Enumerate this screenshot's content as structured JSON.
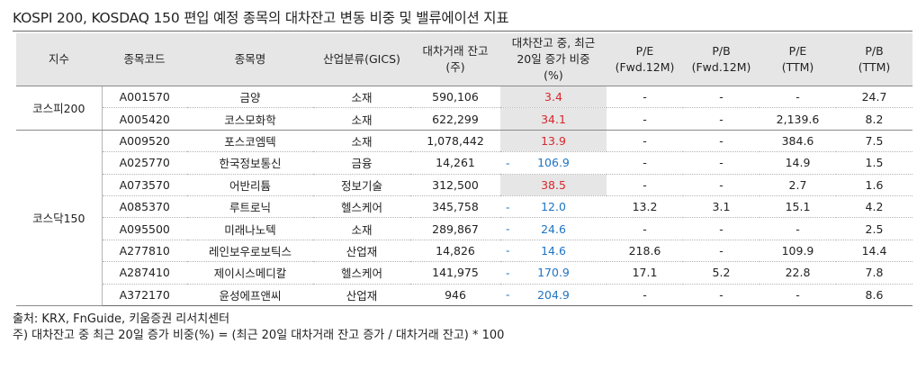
{
  "title": "KOSPI 200, KOSDAQ 150 편입 예정 종목의 대차잔고 변동 비중 및 밸류에이션 지표",
  "headers": {
    "index": "지수",
    "code": "종목코드",
    "name": "종목명",
    "industry": "산업분류(GICS)",
    "balance_l1": "대차거래 잔고",
    "balance_l2": "(주)",
    "ratio_l1": "대차잔고 중, 최근",
    "ratio_l2": "20일 증가 비중",
    "ratio_l3": "(%)",
    "pe_fwd_l1": "P/E",
    "pe_fwd_l2": "(Fwd.12M)",
    "pb_fwd_l1": "P/B",
    "pb_fwd_l2": "(Fwd.12M)",
    "pe_ttm_l1": "P/E",
    "pe_ttm_l2": "(TTM)",
    "pb_ttm_l1": "P/B",
    "pb_ttm_l2": "(TTM)"
  },
  "groups": [
    {
      "index": "코스피200",
      "rows": [
        {
          "code": "A001570",
          "name": "금양",
          "industry": "소재",
          "balance": "590,106",
          "ratio_marker": "",
          "ratio": "3.4",
          "ratio_sign": "pos",
          "pe_fwd": "-",
          "pb_fwd": "-",
          "pe_ttm": "-",
          "pb_ttm": "24.7"
        },
        {
          "code": "A005420",
          "name": "코스모화학",
          "industry": "소재",
          "balance": "622,299",
          "ratio_marker": "",
          "ratio": "34.1",
          "ratio_sign": "pos",
          "pe_fwd": "-",
          "pb_fwd": "-",
          "pe_ttm": "2,139.6",
          "pb_ttm": "8.2"
        }
      ]
    },
    {
      "index": "코스닥150",
      "rows": [
        {
          "code": "A009520",
          "name": "포스코엠텍",
          "industry": "소재",
          "balance": "1,078,442",
          "ratio_marker": "",
          "ratio": "13.9",
          "ratio_sign": "pos",
          "pe_fwd": "-",
          "pb_fwd": "-",
          "pe_ttm": "384.6",
          "pb_ttm": "7.5"
        },
        {
          "code": "A025770",
          "name": "한국정보통신",
          "industry": "금융",
          "balance": "14,261",
          "ratio_marker": "-",
          "ratio": "106.9",
          "ratio_sign": "neg",
          "pe_fwd": "-",
          "pb_fwd": "-",
          "pe_ttm": "14.9",
          "pb_ttm": "1.5"
        },
        {
          "code": "A073570",
          "name": "어반리튬",
          "industry": "정보기술",
          "balance": "312,500",
          "ratio_marker": "",
          "ratio": "38.5",
          "ratio_sign": "pos",
          "pe_fwd": "-",
          "pb_fwd": "-",
          "pe_ttm": "2.7",
          "pb_ttm": "1.6"
        },
        {
          "code": "A085370",
          "name": "루트로닉",
          "industry": "헬스케어",
          "balance": "345,758",
          "ratio_marker": "-",
          "ratio": "12.0",
          "ratio_sign": "neg",
          "pe_fwd": "13.2",
          "pb_fwd": "3.1",
          "pe_ttm": "15.1",
          "pb_ttm": "4.2"
        },
        {
          "code": "A095500",
          "name": "미래나노텍",
          "industry": "소재",
          "balance": "289,867",
          "ratio_marker": "-",
          "ratio": "24.6",
          "ratio_sign": "neg",
          "pe_fwd": "-",
          "pb_fwd": "-",
          "pe_ttm": "-",
          "pb_ttm": "2.5"
        },
        {
          "code": "A277810",
          "name": "레인보우로보틱스",
          "industry": "산업재",
          "balance": "14,826",
          "ratio_marker": "-",
          "ratio": "14.6",
          "ratio_sign": "neg",
          "pe_fwd": "218.6",
          "pb_fwd": "-",
          "pe_ttm": "109.9",
          "pb_ttm": "14.4"
        },
        {
          "code": "A287410",
          "name": "제이시스메디칼",
          "industry": "헬스케어",
          "balance": "141,975",
          "ratio_marker": "-",
          "ratio": "170.9",
          "ratio_sign": "neg",
          "pe_fwd": "17.1",
          "pb_fwd": "5.2",
          "pe_ttm": "22.8",
          "pb_ttm": "7.8"
        },
        {
          "code": "A372170",
          "name": "윤성에프앤씨",
          "industry": "산업재",
          "balance": "946",
          "ratio_marker": "-",
          "ratio": "204.9",
          "ratio_sign": "neg",
          "pe_fwd": "-",
          "pb_fwd": "-",
          "pe_ttm": "-",
          "pb_ttm": "8.6"
        }
      ]
    }
  ],
  "footer": {
    "source": "출처: KRX, FnGuide, 키움증권 리서치센터",
    "note": "주) 대차잔고 중 최근 20일 증가 비중(%) = (최근 20일 대차거래 잔고 증가 / 대차거래 잔고) * 100"
  },
  "colors": {
    "header_bg": "#e6e6e6",
    "positive_ratio": "#d9262c",
    "negative_ratio": "#1f74c4"
  }
}
